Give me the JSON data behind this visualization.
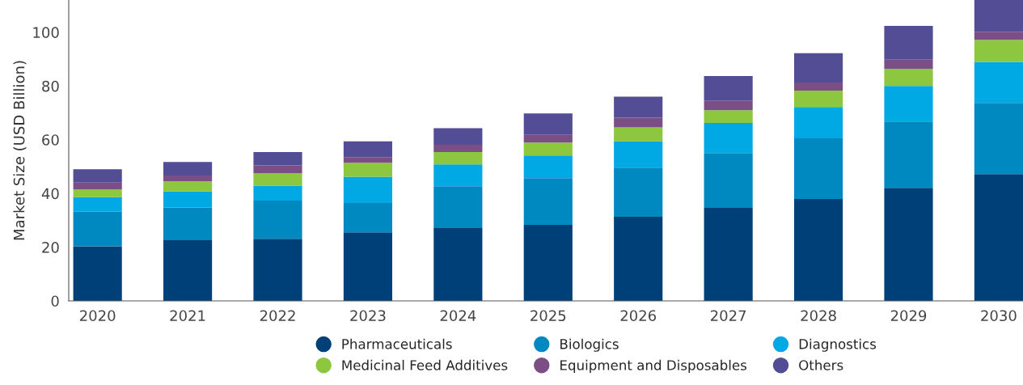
{
  "chart_data": {
    "type": "bar",
    "stacked": true,
    "ylabel": "Market Size (USD Billion)",
    "categories": [
      "2020",
      "2021",
      "2022",
      "2023",
      "2024",
      "2025",
      "2026",
      "2027",
      "2028",
      "2029",
      "2030"
    ],
    "series": [
      {
        "name": "Pharmaceuticals",
        "color": "#004079",
        "values": [
          20.3,
          22.8,
          23.1,
          25.5,
          27.3,
          28.3,
          31.3,
          34.6,
          37.9,
          42.1,
          47.2
        ]
      },
      {
        "name": "Biologics",
        "color": "#0088c0",
        "values": [
          12.9,
          12.0,
          14.2,
          10.9,
          15.4,
          17.4,
          18.3,
          20.4,
          22.6,
          24.7,
          26.5
        ]
      },
      {
        "name": "Diagnostics",
        "color": "#00a9e3",
        "values": [
          5.4,
          6.0,
          5.6,
          9.8,
          8.1,
          8.4,
          9.9,
          11.2,
          11.7,
          13.2,
          15.3
        ]
      },
      {
        "name": "Medicinal Feed Additives",
        "color": "#8dc63f",
        "values": [
          2.9,
          3.7,
          4.6,
          5.2,
          4.6,
          4.8,
          5.1,
          4.8,
          6.1,
          6.3,
          8.2
        ]
      },
      {
        "name": "Equipment and Disposables",
        "color": "#7b4f85",
        "values": [
          2.5,
          2.2,
          2.9,
          2.1,
          2.7,
          2.9,
          3.6,
          3.6,
          3.0,
          3.5,
          3.0
        ]
      },
      {
        "name": "Others",
        "color": "#534d95",
        "values": [
          5.0,
          5.0,
          5.0,
          5.9,
          6.2,
          8.0,
          7.8,
          9.1,
          10.9,
          12.6,
          11.8
        ]
      }
    ],
    "ylim": [
      0,
      112
    ],
    "yticks": [
      0,
      20,
      40,
      60,
      80,
      100
    ],
    "grid": false,
    "legend": "bottom"
  }
}
